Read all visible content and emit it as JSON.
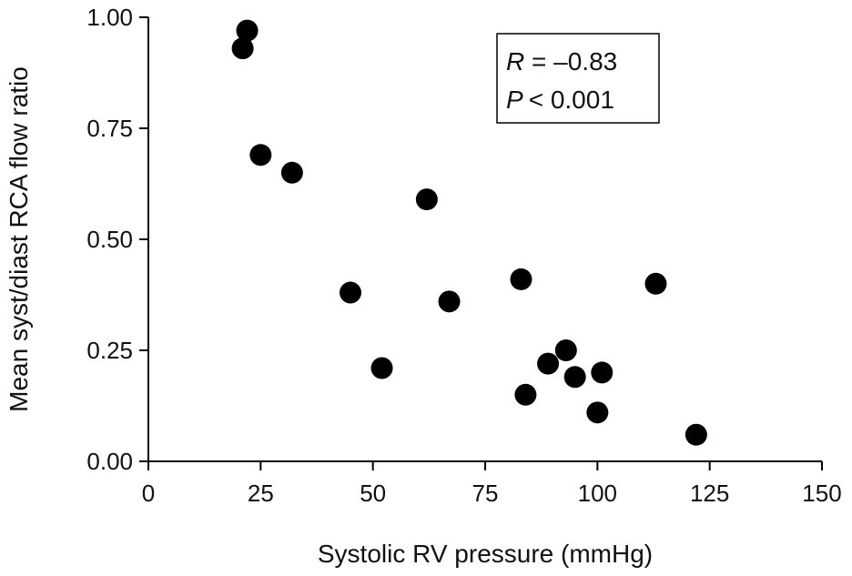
{
  "colors": {
    "points": "#000000",
    "axes": "#000000",
    "background": "#ffffff"
  },
  "chart_data": {
    "type": "scatter",
    "title": "",
    "xlabel": "Systolic RV pressure (mmHg)",
    "ylabel": "Mean syst/diast RCA flow ratio",
    "xlim": [
      0,
      150
    ],
    "ylim": [
      0,
      1.0
    ],
    "x_ticks": [
      0,
      25,
      50,
      75,
      100,
      125,
      150
    ],
    "y_ticks": [
      0,
      0.25,
      0.5,
      0.75,
      1.0
    ],
    "x_tick_labels": [
      "0",
      "25",
      "50",
      "75",
      "100",
      "125",
      "150"
    ],
    "y_tick_labels": [
      "0.00",
      "0.25",
      "0.50",
      "0.75",
      "1.00"
    ],
    "grid": false,
    "legend": null,
    "annotation": {
      "r_symbol": "R",
      "r_value": " = –0.83",
      "p_symbol": "P",
      "p_value": "< 0.001",
      "placement": "top-right"
    },
    "series": [
      {
        "points": [
          {
            "x": 21,
            "y": 0.93
          },
          {
            "x": 22,
            "y": 0.97
          },
          {
            "x": 25,
            "y": 0.69
          },
          {
            "x": 32,
            "y": 0.65
          },
          {
            "x": 45,
            "y": 0.38
          },
          {
            "x": 52,
            "y": 0.21
          },
          {
            "x": 62,
            "y": 0.59
          },
          {
            "x": 67,
            "y": 0.36
          },
          {
            "x": 83,
            "y": 0.41
          },
          {
            "x": 84,
            "y": 0.15
          },
          {
            "x": 89,
            "y": 0.22
          },
          {
            "x": 93,
            "y": 0.25
          },
          {
            "x": 95,
            "y": 0.19
          },
          {
            "x": 100,
            "y": 0.11
          },
          {
            "x": 101,
            "y": 0.2
          },
          {
            "x": 113,
            "y": 0.4
          },
          {
            "x": 122,
            "y": 0.06
          }
        ]
      }
    ]
  }
}
